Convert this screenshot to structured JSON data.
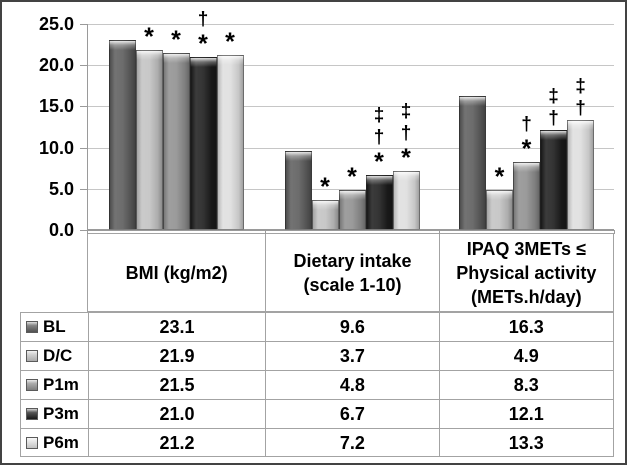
{
  "chart_data": {
    "type": "bar",
    "title": "",
    "xlabel": "",
    "ylabel": "",
    "ylim": [
      0,
      25
    ],
    "ytick_step": 5,
    "yticks": [
      "25.0",
      "20.0",
      "15.0",
      "10.0",
      "5.0",
      "0.0"
    ],
    "grid": true,
    "legend_position": "data-table-left",
    "categories": [
      "BMI (kg/m2)",
      "Dietary intake (scale 1-10)",
      "IPAQ 3METs ≤ Physical activity (METs.h/day)"
    ],
    "category_label_lines": [
      [
        "BMI (kg/m2)"
      ],
      [
        "Dietary intake",
        "(scale 1-10)"
      ],
      [
        "IPAQ 3METs ≤",
        "Physical activity",
        "(METs.h/day)"
      ]
    ],
    "series": [
      {
        "name": "BL",
        "color": "#5c5c5c",
        "values": [
          23.1,
          9.6,
          16.3
        ],
        "display": [
          "23.1",
          "9.6",
          "16.3"
        ],
        "sig_markers": [
          [],
          [],
          []
        ]
      },
      {
        "name": "D/C",
        "color": "#c2c2c2",
        "values": [
          21.9,
          3.7,
          4.9
        ],
        "display": [
          "21.9",
          "3.7",
          "4.9"
        ],
        "sig_markers": [
          [
            "*"
          ],
          [
            "*"
          ],
          [
            "*"
          ]
        ]
      },
      {
        "name": "P1m",
        "color": "#8f8f8f",
        "values": [
          21.5,
          4.8,
          8.3
        ],
        "display": [
          "21.5",
          "4.8",
          "8.3"
        ],
        "sig_markers": [
          [
            "*"
          ],
          [
            "*"
          ],
          [
            "*",
            "†"
          ]
        ]
      },
      {
        "name": "P3m",
        "color": "#1c1c1c",
        "values": [
          21.0,
          6.7,
          12.1
        ],
        "display": [
          "21.0",
          "6.7",
          "12.1"
        ],
        "sig_markers": [
          [
            "*",
            "†"
          ],
          [
            "*",
            "†",
            "‡"
          ],
          [
            "†",
            "‡"
          ]
        ]
      },
      {
        "name": "P6m",
        "color": "#dedede",
        "values": [
          21.2,
          7.2,
          13.3
        ],
        "display": [
          "21.2",
          "7.2",
          "13.3"
        ],
        "sig_markers": [
          [
            "*"
          ],
          [
            "*",
            "†",
            "‡"
          ],
          [
            "†",
            "‡"
          ]
        ]
      }
    ],
    "ui_colors": {
      "gridline": "#c6c6c6",
      "axis": "#9a9a9a",
      "table_border": "#a3a3a3",
      "frame_border": "#434343",
      "text": "#000000",
      "background": "#ffffff"
    }
  }
}
